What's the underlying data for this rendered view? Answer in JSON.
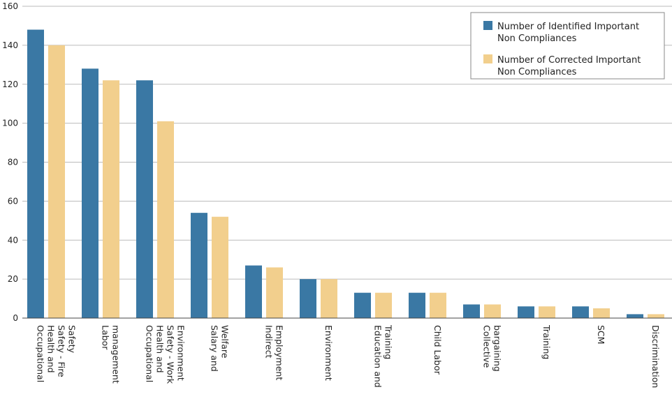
{
  "chart_data": {
    "type": "bar",
    "title": "",
    "xlabel": "",
    "ylabel": "",
    "ylim": [
      0,
      160
    ],
    "yticks": [
      0,
      20,
      40,
      60,
      80,
      100,
      120,
      140,
      160
    ],
    "grid": true,
    "legend_position": "top-right",
    "categories": [
      [
        "Occupational",
        "Health and",
        "Safety - Fire",
        "Safety"
      ],
      [
        "Labor",
        "management"
      ],
      [
        "Occupational",
        "Health and",
        "Safety - Work",
        "Environment"
      ],
      [
        "Salary and",
        "Welfare"
      ],
      [
        "Indirect",
        "Employment"
      ],
      [
        "Environment"
      ],
      [
        "Education and",
        "Training"
      ],
      [
        "Child Labor"
      ],
      [
        "Collective",
        "bargaining"
      ],
      [
        "Training"
      ],
      [
        "SCM"
      ],
      [
        "Discrimination"
      ]
    ],
    "series": [
      {
        "name": [
          "Number of Identified Important",
          "Non Compliances"
        ],
        "color": "#3a78a4",
        "values": [
          148,
          128,
          122,
          54,
          27,
          20,
          13,
          13,
          7,
          6,
          6,
          2
        ]
      },
      {
        "name": [
          "Number of Corrected Important",
          "Non Compliances"
        ],
        "color": "#f2cf8d",
        "values": [
          140,
          122,
          101,
          52,
          26,
          20,
          13,
          13,
          7,
          6,
          5,
          2
        ]
      }
    ]
  }
}
